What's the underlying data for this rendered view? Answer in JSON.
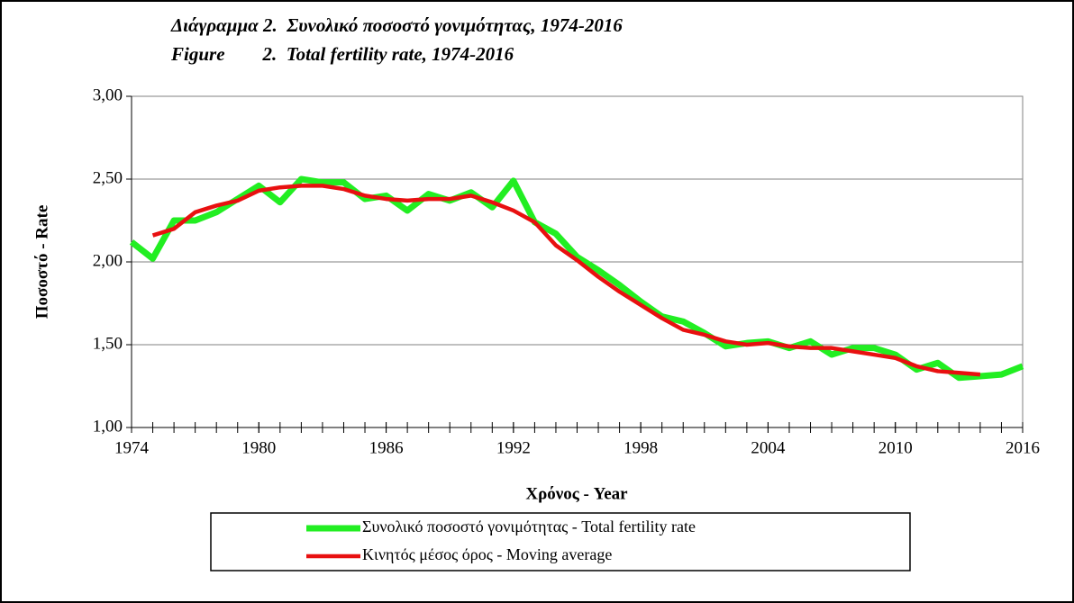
{
  "chart_data": {
    "type": "line",
    "title": "Διάγραμμα 2.  Συνολικό ποσοστό γονιμότητας, 1974-2016",
    "subtitle": "Figure        2.  Total fertility rate, 1974-2016",
    "x_label": "Χρόνος - Year",
    "y_label": "Ποσοστό - Rate",
    "x": [
      1974,
      1975,
      1976,
      1977,
      1978,
      1979,
      1980,
      1981,
      1982,
      1983,
      1984,
      1985,
      1986,
      1987,
      1988,
      1989,
      1990,
      1991,
      1992,
      1993,
      1994,
      1995,
      1996,
      1997,
      1998,
      1999,
      2000,
      2001,
      2002,
      2003,
      2004,
      2005,
      2006,
      2007,
      2008,
      2009,
      2010,
      2011,
      2012,
      2013,
      2014,
      2015,
      2016
    ],
    "series": [
      {
        "name": "Συνολικό ποσοστό γονιμότητας - Total fertility rate",
        "color": "#22ee22",
        "values": [
          2.12,
          2.02,
          2.25,
          2.25,
          2.3,
          2.38,
          2.46,
          2.36,
          2.5,
          2.48,
          2.48,
          2.38,
          2.4,
          2.31,
          2.41,
          2.37,
          2.42,
          2.33,
          2.49,
          2.24,
          2.17,
          2.03,
          1.95,
          1.86,
          1.76,
          1.67,
          1.64,
          1.57,
          1.49,
          1.51,
          1.52,
          1.48,
          1.52,
          1.44,
          1.48,
          1.48,
          1.44,
          1.35,
          1.39,
          1.3,
          1.31,
          1.32,
          1.37
        ]
      },
      {
        "name": "Κινητός μέσος όρος - Moving average",
        "color": "#e81010",
        "values": [
          null,
          2.16,
          2.2,
          2.3,
          2.34,
          2.37,
          2.43,
          2.45,
          2.46,
          2.46,
          2.44,
          2.4,
          2.38,
          2.37,
          2.38,
          2.38,
          2.4,
          2.36,
          2.31,
          2.24,
          2.1,
          2.01,
          1.91,
          1.82,
          1.74,
          1.66,
          1.59,
          1.56,
          1.52,
          1.5,
          1.51,
          1.49,
          1.48,
          1.48,
          1.46,
          1.44,
          1.42,
          1.37,
          1.34,
          1.33,
          1.32,
          null,
          null
        ]
      }
    ],
    "xlim": [
      1974,
      2016
    ],
    "xticks": [
      1974,
      1980,
      1986,
      1992,
      1998,
      2004,
      2010,
      2016
    ],
    "ylim": [
      1,
      3
    ],
    "yticks": [
      {
        "value": 1,
        "label": "1,00"
      },
      {
        "value": 1.5,
        "label": "1,50"
      },
      {
        "value": 2,
        "label": "2,00"
      },
      {
        "value": 2.5,
        "label": "2,50"
      },
      {
        "value": 3,
        "label": "3,00"
      }
    ],
    "grid": true,
    "legend": "bottom"
  }
}
